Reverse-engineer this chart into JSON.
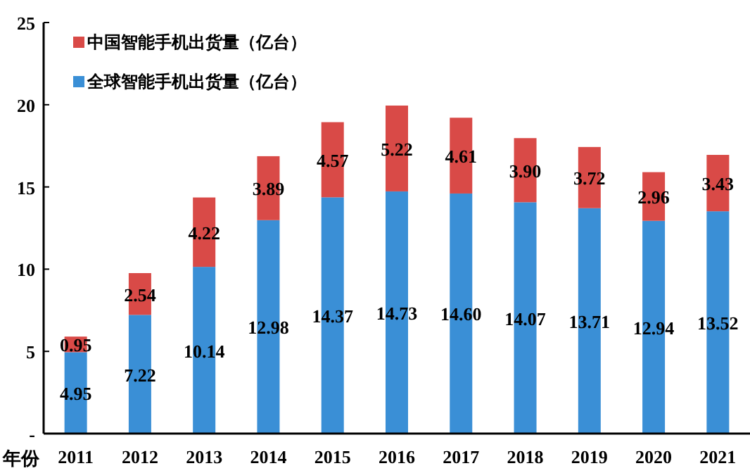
{
  "chart_data": {
    "type": "bar",
    "stacked": true,
    "xlabel": "年份",
    "categories": [
      "2011",
      "2012",
      "2013",
      "2014",
      "2015",
      "2016",
      "2017",
      "2018",
      "2019",
      "2020",
      "2021"
    ],
    "series": [
      {
        "name": "全球智能手机出货量（亿台）",
        "color": "#3a8fd6",
        "values": [
          4.95,
          7.22,
          10.14,
          12.98,
          14.37,
          14.73,
          14.6,
          14.07,
          13.71,
          12.94,
          13.52
        ],
        "value_labels": [
          "4.95",
          "7.22",
          "10.14",
          "12.98",
          "14.37",
          "14.73",
          "14.60",
          "14.07",
          "13.71",
          "12.94",
          "13.52"
        ]
      },
      {
        "name": "中国智能手机出货量（亿台）",
        "color": "#d94a47",
        "values": [
          0.95,
          2.54,
          4.22,
          3.89,
          4.57,
          5.22,
          4.61,
          3.9,
          3.72,
          2.96,
          3.43
        ],
        "value_labels": [
          "0.95",
          "2.54",
          "4.22",
          "3.89",
          "4.57",
          "5.22",
          "4.61",
          "3.90",
          "3.72",
          "2.96",
          "3.43"
        ]
      }
    ],
    "ylim": [
      0,
      25
    ],
    "yticks": [
      {
        "value": 0,
        "label": "-"
      },
      5,
      10,
      15,
      20,
      25
    ],
    "legend": "top left"
  }
}
